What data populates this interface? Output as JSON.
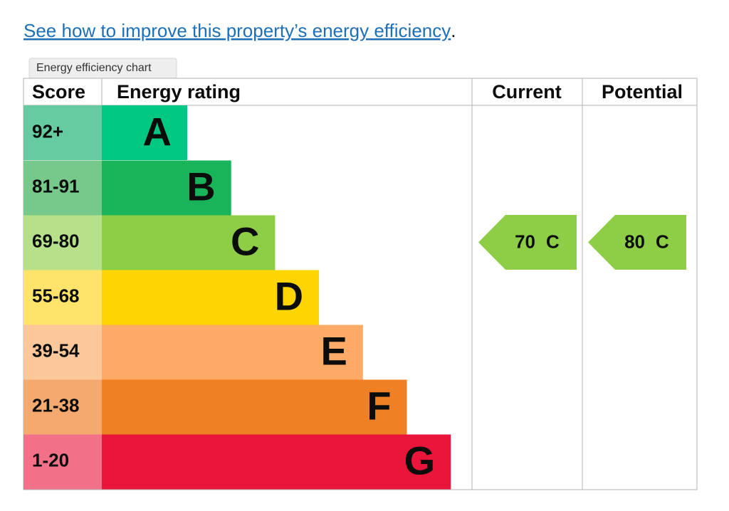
{
  "link": {
    "text": "See how to improve this property’s energy efficiency",
    "suffix": "."
  },
  "tooltip": "Energy efficiency chart",
  "table": {
    "headers": [
      "Score",
      "Energy rating",
      "Current",
      "Potential"
    ],
    "rows": [
      {
        "score": "92+",
        "rating": "A"
      },
      {
        "score": "81-91",
        "rating": "B"
      },
      {
        "score": "69-80",
        "rating": "C"
      },
      {
        "score": "55-68",
        "rating": "D"
      },
      {
        "score": "39-54",
        "rating": "E"
      },
      {
        "score": "21-38",
        "rating": "F"
      },
      {
        "score": "1-20",
        "rating": "G"
      }
    ],
    "current": {
      "score": 70,
      "rating": "C"
    },
    "potential": {
      "score": 80,
      "rating": "C"
    }
  }
}
